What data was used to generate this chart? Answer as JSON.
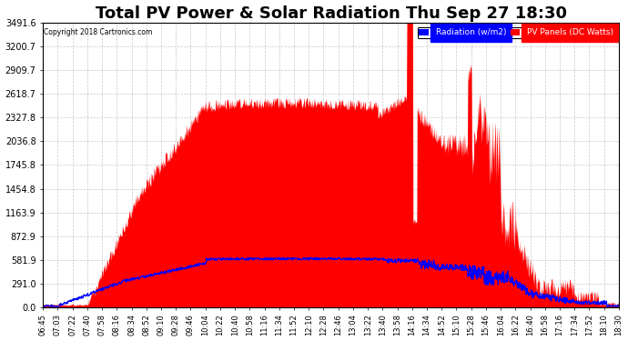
{
  "title": "Total PV Power & Solar Radiation Thu Sep 27 18:30",
  "copyright": "Copyright 2018 Cartronics.com",
  "legend_radiation": "Radiation (w/m2)",
  "legend_pv": "PV Panels (DC Watts)",
  "legend_radiation_bg": "#0000FF",
  "legend_pv_bg": "#FF0000",
  "legend_text_color": "#FFFFFF",
  "yticks": [
    0.0,
    291.0,
    581.9,
    872.9,
    1163.9,
    1454.8,
    1745.8,
    2036.8,
    2327.8,
    2618.7,
    2909.7,
    3200.7,
    3491.6
  ],
  "ymin": 0.0,
  "ymax": 3491.6,
  "background_color": "#FFFFFF",
  "plot_bg_color": "#FFFFFF",
  "grid_color": "#BBBBBB",
  "pv_color": "#FF0000",
  "radiation_color": "#0000FF",
  "title_fontsize": 13,
  "figsize": [
    6.9,
    3.75
  ],
  "dpi": 100,
  "xtick_times": [
    "06:45",
    "07:03",
    "07:22",
    "07:40",
    "07:58",
    "08:16",
    "08:34",
    "08:52",
    "09:10",
    "09:28",
    "09:46",
    "10:04",
    "10:22",
    "10:40",
    "10:58",
    "11:16",
    "11:34",
    "11:52",
    "12:10",
    "12:28",
    "12:46",
    "13:04",
    "13:22",
    "13:40",
    "13:58",
    "14:16",
    "14:34",
    "14:52",
    "15:10",
    "15:28",
    "15:46",
    "16:04",
    "16:22",
    "16:40",
    "16:58",
    "17:16",
    "17:34",
    "17:52",
    "18:10",
    "18:30"
  ]
}
